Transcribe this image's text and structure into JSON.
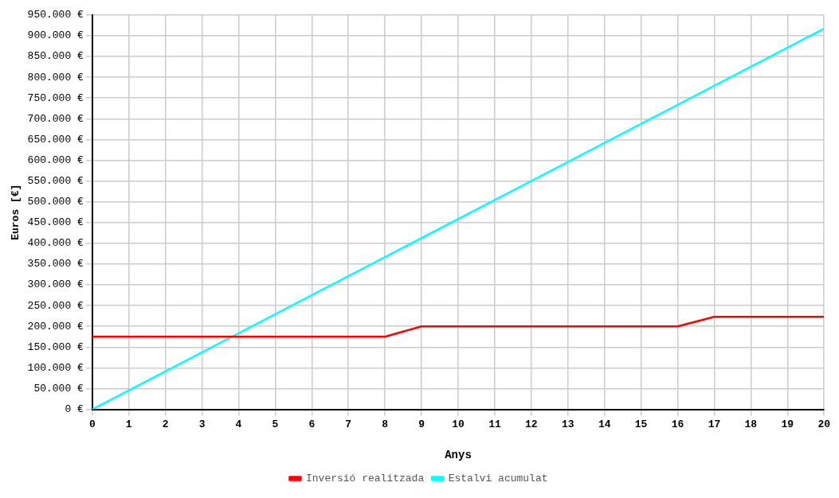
{
  "chart_data": {
    "type": "line",
    "xlabel": "Anys",
    "ylabel": "Euros [€]",
    "xlim": [
      0,
      20
    ],
    "xticks": [
      0,
      1,
      2,
      3,
      4,
      5,
      6,
      7,
      8,
      9,
      10,
      11,
      12,
      13,
      14,
      15,
      16,
      17,
      18,
      19,
      20
    ],
    "ylim": [
      0,
      950000
    ],
    "yticks": [
      {
        "value": 0,
        "label": "0 €"
      },
      {
        "value": 50000,
        "label": "50.000 €"
      },
      {
        "value": 100000,
        "label": "100.000 €"
      },
      {
        "value": 150000,
        "label": "150.000 €"
      },
      {
        "value": 200000,
        "label": "200.000 €"
      },
      {
        "value": 250000,
        "label": "250.000 €"
      },
      {
        "value": 300000,
        "label": "300.000 €"
      },
      {
        "value": 350000,
        "label": "350.000 €"
      },
      {
        "value": 400000,
        "label": "400.000 €"
      },
      {
        "value": 450000,
        "label": "450.000 €"
      },
      {
        "value": 500000,
        "label": "500.000 €"
      },
      {
        "value": 550000,
        "label": "550.000 €"
      },
      {
        "value": 600000,
        "label": "600.000 €"
      },
      {
        "value": 650000,
        "label": "650.000 €"
      },
      {
        "value": 700000,
        "label": "700.000 €"
      },
      {
        "value": 750000,
        "label": "750.000 €"
      },
      {
        "value": 800000,
        "label": "800.000 €"
      },
      {
        "value": 850000,
        "label": "850.000 €"
      },
      {
        "value": 900000,
        "label": "900.000 €"
      },
      {
        "value": 950000,
        "label": "950.000 €"
      }
    ],
    "grid": true,
    "legend": "bottom",
    "marker": "none",
    "line_style": "solid",
    "series": [
      {
        "name": "Inversió realitzada",
        "color": "#ff0000",
        "x": [
          0,
          8,
          9,
          16,
          17,
          20
        ],
        "values": [
          175000,
          175000,
          200000,
          200000,
          223000,
          223000
        ]
      },
      {
        "name": "Estalvi acumulat",
        "color": "#00ffff",
        "x": [
          0,
          20
        ],
        "values": [
          0,
          917000
        ]
      }
    ]
  }
}
